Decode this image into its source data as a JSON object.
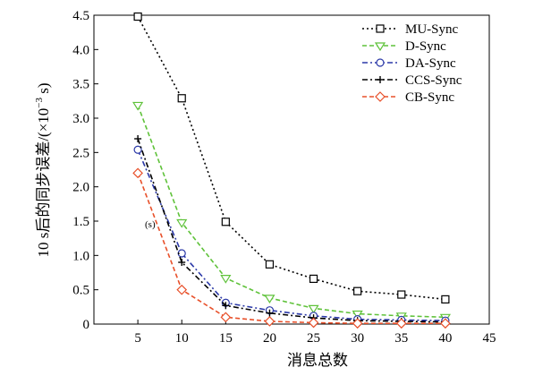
{
  "chart_data": {
    "type": "line",
    "title": "",
    "xlabel": "消息总数",
    "ylabel": "10 s后的同步误差/(×10",
    "ylabel_sup": "−3",
    "ylabel_tail": " s)",
    "x": [
      5,
      10,
      15,
      20,
      25,
      30,
      35,
      40
    ],
    "xlim": [
      0,
      45
    ],
    "ylim": [
      0,
      4.5
    ],
    "xticks": [
      "5",
      "10",
      "15",
      "20",
      "25",
      "30",
      "35",
      "40",
      "45"
    ],
    "yticks": [
      "0",
      "0.5",
      "1.0",
      "1.5",
      "2.0",
      "2.5",
      "3.0",
      "3.5",
      "4.0",
      "4.5"
    ],
    "grid": false,
    "legend_position": "top-right",
    "annotation": "(s)",
    "series": [
      {
        "name": "MU-Sync",
        "color": "#000000",
        "marker": "square",
        "dash": "dot",
        "values": [
          4.48,
          3.29,
          1.49,
          0.87,
          0.66,
          0.48,
          0.43,
          0.36
        ]
      },
      {
        "name": "D-Sync",
        "color": "#5fc23a",
        "marker": "triangle",
        "dash": "dash",
        "values": [
          3.19,
          1.48,
          0.67,
          0.38,
          0.23,
          0.15,
          0.12,
          0.1
        ]
      },
      {
        "name": "DA-Sync",
        "color": "#2b39a8",
        "marker": "circle",
        "dash": "dashdot",
        "values": [
          2.54,
          1.03,
          0.31,
          0.2,
          0.12,
          0.07,
          0.06,
          0.05
        ]
      },
      {
        "name": "CCS-Sync",
        "color": "#000000",
        "marker": "plus",
        "dash": "dashdot",
        "values": [
          2.7,
          0.9,
          0.27,
          0.16,
          0.09,
          0.05,
          0.04,
          0.03
        ]
      },
      {
        "name": "CB-Sync",
        "color": "#e8502a",
        "marker": "diamond",
        "dash": "dash",
        "values": [
          2.2,
          0.5,
          0.1,
          0.04,
          0.02,
          0.01,
          0.01,
          0.01
        ]
      }
    ]
  }
}
